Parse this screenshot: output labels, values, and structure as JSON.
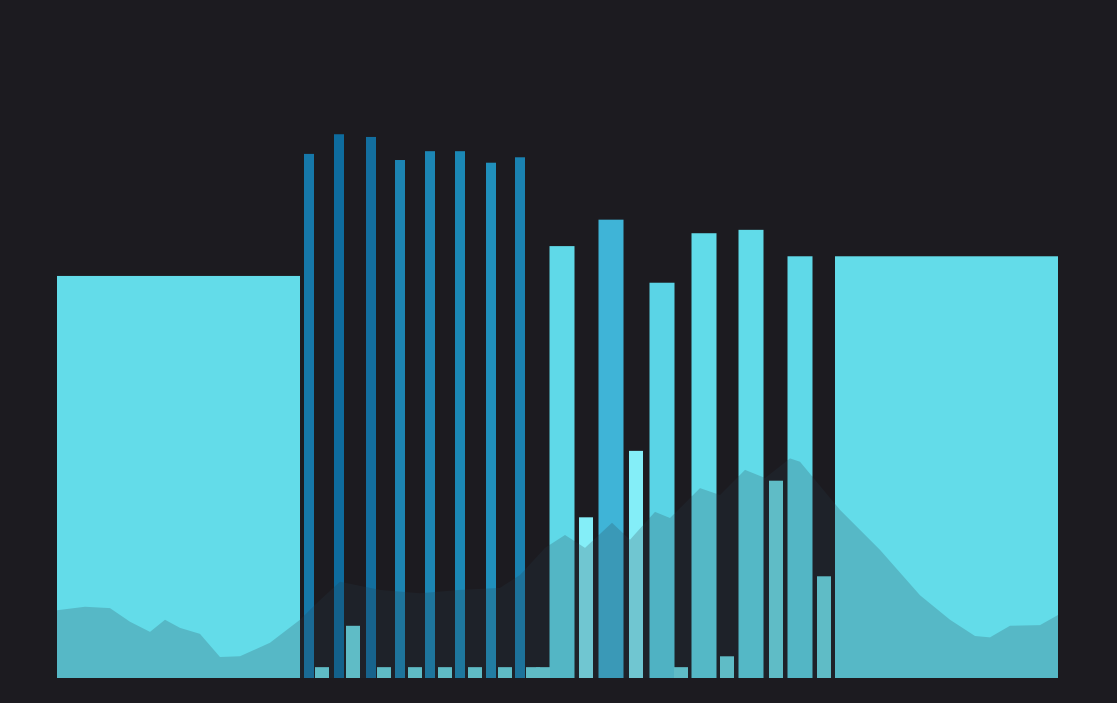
{
  "chart_data": {
    "type": "bar",
    "xlim": [
      0,
      1117
    ],
    "ylim": [
      0,
      100
    ],
    "series": [
      {
        "kind": "bar",
        "x": [
          178.5,
          946.5
        ],
        "values": [
          59.3,
          62.2
        ],
        "colors": [
          "#63dce9",
          "#63dce9"
        ]
      },
      {
        "kind": "bar",
        "x": [
          309,
          339,
          371,
          400,
          430,
          460,
          491,
          520
        ],
        "values": [
          77.3,
          80.2,
          79.8,
          76.4,
          77.7,
          77.7,
          76.0,
          76.8
        ],
        "colors": [
          "#1678a9",
          "#0e6c9e",
          "#136f9f",
          "#1c84b2",
          "#1c86b4",
          "#1b88b5",
          "#2090bc",
          "#1a82b1"
        ]
      },
      {
        "kind": "bar",
        "x": [
          562,
          611,
          662,
          704,
          751,
          800
        ],
        "values": [
          63.7,
          67.6,
          58.3,
          65.6,
          66.1,
          62.2
        ],
        "colors": [
          "#5fd9e8",
          "#3fb4d7",
          "#5ad4e6",
          "#61dbe9",
          "#61dbe9",
          "#5fd9e8"
        ]
      },
      {
        "kind": "bar",
        "x": [
          322,
          353,
          384,
          415,
          445,
          475,
          505,
          533,
          543,
          586,
          636,
          681,
          727,
          776,
          824
        ],
        "values": [
          1.6,
          7.7,
          1.6,
          1.6,
          1.6,
          1.6,
          1.6,
          1.6,
          1.6,
          23.7,
          33.5,
          1.6,
          3.2,
          29.1,
          15.0
        ],
        "colors": [
          "#6fe0ea",
          "#6fe0ea",
          "#6fe0ea",
          "#6fe0ea",
          "#6fe0ea",
          "#6fe0ea",
          "#6fe0ea",
          "#6fe0ea",
          "#6fe0ea",
          "#84eef8",
          "#84eef8",
          "#6fe0ea",
          "#6fe0ea",
          "#6fe0ea",
          "#6fe0ea"
        ]
      },
      {
        "kind": "area",
        "color": "#2a3a48",
        "x": [
          57,
          85,
          110,
          130,
          150,
          165,
          180,
          200,
          220,
          240,
          270,
          300,
          320,
          340,
          380,
          420,
          460,
          500,
          520,
          545,
          565,
          585,
          612,
          630,
          655,
          670,
          700,
          720,
          745,
          765,
          790,
          800,
          840,
          880,
          920,
          950,
          975,
          990,
          1010,
          1040,
          1058
        ],
        "values": [
          10.0,
          10.5,
          10.3,
          8.3,
          6.8,
          8.6,
          7.4,
          6.5,
          3.1,
          3.2,
          5.2,
          8.6,
          11.5,
          14.2,
          13.0,
          12.5,
          13.0,
          13.3,
          15.2,
          19.2,
          21.1,
          19.2,
          22.9,
          20.4,
          24.5,
          23.6,
          28.0,
          27.0,
          30.7,
          29.5,
          32.4,
          31.9,
          24.8,
          18.9,
          12.2,
          8.6,
          6.2,
          6.0,
          7.7,
          7.8,
          9.3
        ]
      }
    ]
  }
}
